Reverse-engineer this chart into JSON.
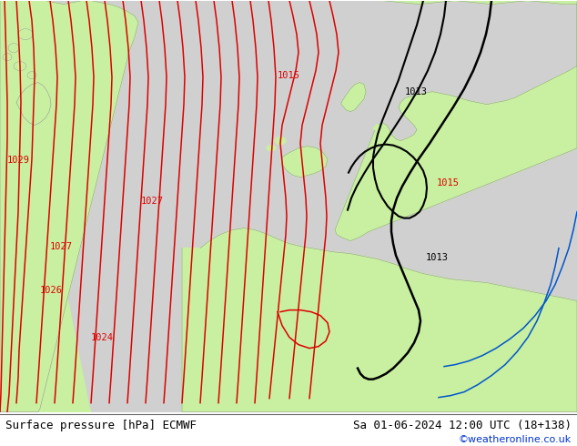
{
  "title_left": "Surface pressure [hPa] ECMWF",
  "title_right": "Sa 01-06-2024 12:00 UTC (18+138)",
  "credit": "©weatheronline.co.uk",
  "bg_color": "#d8d8d8",
  "land_color": "#c8f0a0",
  "sea_color": "#d8d8d8",
  "isobar_color_red": "#dd0000",
  "isobar_color_black": "#000000",
  "isobar_color_blue": "#0055cc",
  "figsize": [
    6.34,
    4.9
  ],
  "dpi": 100
}
